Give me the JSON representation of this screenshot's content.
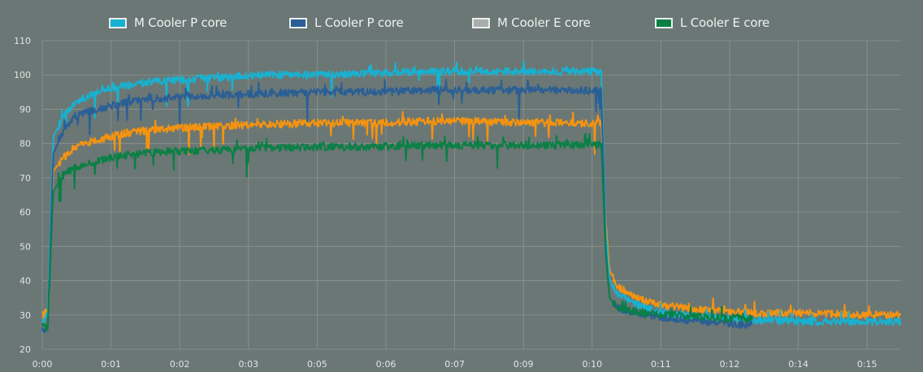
{
  "chart_data": {
    "type": "line",
    "title": "",
    "xlabel": "",
    "ylabel": "",
    "ylim": [
      20,
      110
    ],
    "yticks": [
      20,
      30,
      40,
      50,
      60,
      70,
      80,
      90,
      100,
      110
    ],
    "xlim": [
      0,
      15.67
    ],
    "xtick_labels": [
      "0:00",
      "0:01",
      "0:02",
      "0:03",
      "0:05",
      "0:06",
      "0:07",
      "0:09",
      "0:10",
      "0:11",
      "0:12",
      "0:14",
      "0:15"
    ],
    "grid": true,
    "legend_position": "top",
    "background": "#6b7775",
    "gridline_color": "#8a9593",
    "series": [
      {
        "name": "M Cooler P core",
        "legend_color": "#17b2d1",
        "color": "#17b2d1",
        "x": [
          0,
          0.1,
          0.2,
          0.4,
          0.6,
          1.0,
          1.5,
          2.0,
          3.0,
          4.0,
          5.0,
          6.0,
          7.0,
          8.0,
          9.0,
          10.2,
          10.28,
          10.35,
          10.5,
          11.0,
          11.5,
          12.0,
          12.5,
          13.0,
          14.0,
          15.0,
          15.67
        ],
        "y": [
          28,
          30,
          82,
          88,
          92,
          95,
          97,
          98,
          99,
          100,
          100,
          100.5,
          101,
          101,
          101,
          101,
          55,
          40,
          36,
          32,
          30,
          29.5,
          29,
          28.5,
          28,
          28,
          28
        ]
      },
      {
        "name": "L Cooler P core",
        "legend_color": "#2a5f96",
        "color": "#2a5f96",
        "x": [
          0,
          0.1,
          0.2,
          0.4,
          0.6,
          1.0,
          1.5,
          2.0,
          3.0,
          4.0,
          5.0,
          6.0,
          7.0,
          8.0,
          9.0,
          10.2,
          10.28,
          10.35,
          10.5,
          11.0,
          11.5,
          12.0,
          12.5,
          12.95
        ],
        "y": [
          26,
          25,
          77,
          84,
          88,
          90,
          92,
          93,
          94,
          94.5,
          95,
          95,
          95.5,
          95.5,
          95.5,
          95.5,
          50,
          35,
          32,
          30,
          29,
          28,
          27.5,
          27
        ]
      },
      {
        "name": "M Cooler E core",
        "legend_color": "#a9adab",
        "color": "#f5930f",
        "x": [
          0,
          0.1,
          0.2,
          0.4,
          0.6,
          1.0,
          1.5,
          2.0,
          3.0,
          4.0,
          5.0,
          6.0,
          7.0,
          8.0,
          9.0,
          10.2,
          10.28,
          10.35,
          10.5,
          11.0,
          11.5,
          12.0,
          12.5,
          13.0,
          14.0,
          15.0,
          15.67
        ],
        "y": [
          30,
          31,
          72,
          76,
          79,
          81,
          83,
          84,
          85,
          85.5,
          86,
          86,
          86.5,
          86.5,
          86,
          86,
          58,
          43,
          38,
          34,
          32.5,
          31.5,
          31,
          30.5,
          30.5,
          30,
          30
        ]
      },
      {
        "name": "L Cooler E core",
        "legend_color": "#0a8045",
        "color": "#0a8045",
        "x": [
          0,
          0.1,
          0.2,
          0.4,
          0.6,
          1.0,
          1.5,
          2.0,
          3.0,
          4.0,
          5.0,
          6.0,
          7.0,
          8.0,
          9.0,
          10.2,
          10.28,
          10.35,
          10.5,
          11.0,
          11.5,
          12.0,
          12.5,
          12.95
        ],
        "y": [
          27,
          26,
          66,
          71,
          73,
          75,
          76.5,
          77.5,
          78,
          78.5,
          79,
          79,
          79.5,
          79.5,
          79.5,
          79.5,
          48,
          35,
          32,
          30.5,
          30,
          29.5,
          29,
          29
        ]
      }
    ]
  }
}
